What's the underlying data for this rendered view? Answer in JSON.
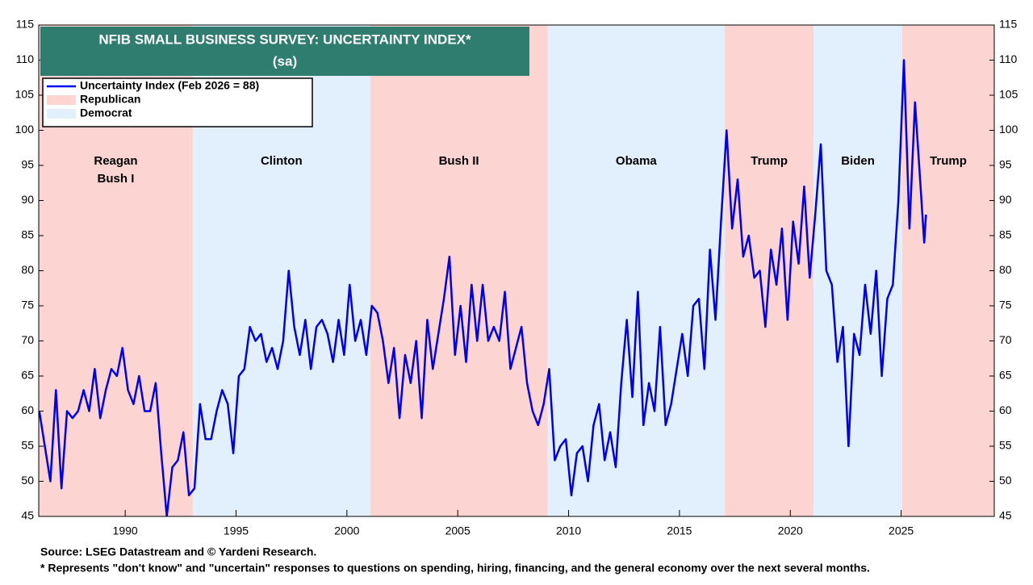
{
  "chart_data": {
    "type": "line",
    "title": "NFIB SMALL BUSINESS SURVEY: UNCERTAINTY INDEX*",
    "subtitle": "(sa)",
    "source": "Source: LSEG Datastream and © Yardeni Research.",
    "note": "* Represents \"don't know\" and \"uncertain\" responses to questions on spending, hiring, financing, and the general economy over the next several months.",
    "xlim": [
      1986.1,
      2029.2
    ],
    "xticks": [
      1990,
      1995,
      2000,
      2005,
      2010,
      2015,
      2020,
      2025
    ],
    "ylim": [
      45,
      115
    ],
    "yticks": [
      45,
      50,
      55,
      60,
      65,
      70,
      75,
      80,
      85,
      90,
      95,
      100,
      105,
      110,
      115
    ],
    "regions": [
      {
        "name": "Republican",
        "start": 1986.1,
        "end": 1993.05,
        "lines": [
          "Reagan",
          "Bush I"
        ]
      },
      {
        "name": "Democrat",
        "start": 1993.05,
        "end": 2001.05,
        "lines": [
          "Clinton"
        ]
      },
      {
        "name": "Republican",
        "start": 2001.05,
        "end": 2009.05,
        "lines": [
          "Bush II"
        ]
      },
      {
        "name": "Democrat",
        "start": 2009.05,
        "end": 2017.05,
        "lines": [
          "Obama"
        ]
      },
      {
        "name": "Republican",
        "start": 2017.05,
        "end": 2021.05,
        "lines": [
          "Trump"
        ]
      },
      {
        "name": "Democrat",
        "start": 2021.05,
        "end": 2025.05,
        "lines": [
          "Biden"
        ]
      },
      {
        "name": "Republican",
        "start": 2025.05,
        "end": 2029.2,
        "lines": [
          "Trump"
        ]
      }
    ],
    "region_legend": [
      {
        "name": "Republican",
        "color": "#fcd5d3"
      },
      {
        "name": "Democrat",
        "color": "#e1f0fc"
      }
    ],
    "x": [
      1986.125,
      1986.375,
      1986.625,
      1986.875,
      1987.125,
      1987.375,
      1987.625,
      1987.875,
      1988.125,
      1988.375,
      1988.625,
      1988.875,
      1989.125,
      1989.375,
      1989.625,
      1989.875,
      1990.125,
      1990.375,
      1990.625,
      1990.875,
      1991.125,
      1991.375,
      1991.625,
      1991.875,
      1992.125,
      1992.375,
      1992.625,
      1992.875,
      1993.125,
      1993.375,
      1993.625,
      1993.875,
      1994.125,
      1994.375,
      1994.625,
      1994.875,
      1995.125,
      1995.375,
      1995.625,
      1995.875,
      1996.125,
      1996.375,
      1996.625,
      1996.875,
      1997.125,
      1997.375,
      1997.625,
      1997.875,
      1998.125,
      1998.375,
      1998.625,
      1998.875,
      1999.125,
      1999.375,
      1999.625,
      1999.875,
      2000.125,
      2000.375,
      2000.625,
      2000.875,
      2001.125,
      2001.375,
      2001.625,
      2001.875,
      2002.125,
      2002.375,
      2002.625,
      2002.875,
      2003.125,
      2003.375,
      2003.625,
      2003.875,
      2004.125,
      2004.375,
      2004.625,
      2004.875,
      2005.125,
      2005.375,
      2005.625,
      2005.875,
      2006.125,
      2006.375,
      2006.625,
      2006.875,
      2007.125,
      2007.375,
      2007.625,
      2007.875,
      2008.125,
      2008.375,
      2008.625,
      2008.875,
      2009.125,
      2009.375,
      2009.625,
      2009.875,
      2010.125,
      2010.375,
      2010.625,
      2010.875,
      2011.125,
      2011.375,
      2011.625,
      2011.875,
      2012.125,
      2012.375,
      2012.625,
      2012.875,
      2013.125,
      2013.375,
      2013.625,
      2013.875,
      2014.125,
      2014.375,
      2014.625,
      2014.875,
      2015.125,
      2015.375,
      2015.625,
      2015.875,
      2016.125,
      2016.375,
      2016.625,
      2016.875,
      2017.125,
      2017.375,
      2017.625,
      2017.875,
      2018.125,
      2018.375,
      2018.625,
      2018.875,
      2019.125,
      2019.375,
      2019.625,
      2019.875,
      2020.125,
      2020.375,
      2020.625,
      2020.875,
      2021.125,
      2021.375,
      2021.625,
      2021.875,
      2022.125,
      2022.375,
      2022.625,
      2022.875,
      2023.125,
      2023.375,
      2023.625,
      2023.875,
      2024.125,
      2024.375,
      2024.625,
      2024.875,
      2025.125,
      2025.375,
      2025.625,
      2025.875,
      2026.04,
      2026.12
    ],
    "series": [
      {
        "name": "Uncertainty Index (Feb 2026 = 88)",
        "color": "#0000ee",
        "values": [
          60,
          55,
          50,
          63,
          49,
          60,
          59,
          60,
          63,
          60,
          66,
          59,
          63,
          66,
          65,
          69,
          63,
          61,
          65,
          60,
          60,
          64,
          54,
          45,
          52,
          53,
          57,
          48,
          49,
          61,
          56,
          56,
          60,
          63,
          61,
          54,
          65,
          66,
          72,
          70,
          71,
          67,
          69,
          66,
          70,
          80,
          72,
          68,
          73,
          66,
          72,
          73,
          71,
          67,
          73,
          68,
          78,
          70,
          73,
          68,
          75,
          74,
          70,
          64,
          69,
          59,
          68,
          64,
          70,
          59,
          73,
          66,
          71,
          76,
          82,
          68,
          75,
          67,
          78,
          70,
          78,
          70,
          72,
          70,
          77,
          66,
          69,
          72,
          64,
          60,
          58,
          61,
          66,
          53,
          55,
          56,
          48,
          54,
          55,
          50,
          58,
          61,
          53,
          57,
          52,
          64,
          73,
          62,
          77,
          58,
          64,
          60,
          72,
          58,
          61,
          66,
          71,
          65,
          75,
          76,
          66,
          83,
          73,
          87,
          100,
          86,
          93,
          82,
          85,
          79,
          80,
          72,
          83,
          78,
          86,
          73,
          87,
          81,
          92,
          79,
          88,
          98,
          80,
          78,
          67,
          72,
          55,
          71,
          68,
          78,
          71,
          80,
          65,
          76,
          78,
          90,
          110,
          86,
          104,
          92,
          84,
          88
        ]
      }
    ]
  }
}
